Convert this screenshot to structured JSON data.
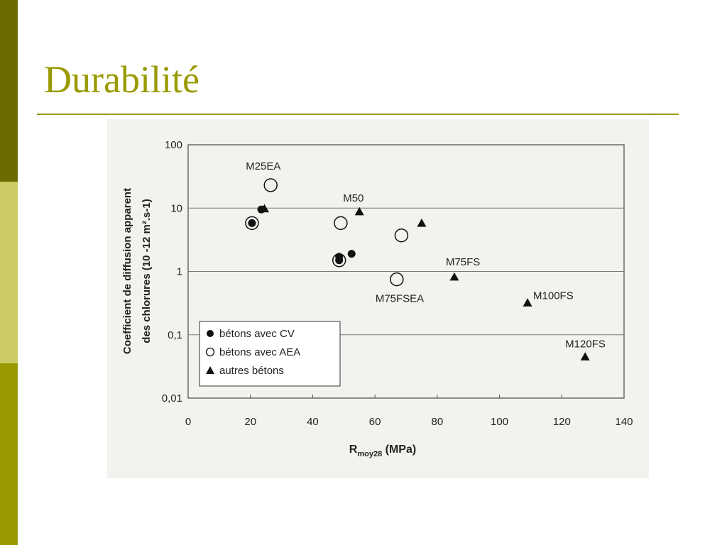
{
  "slide": {
    "title": "Durabilité"
  },
  "colors": {
    "accent": "#999900",
    "bar_dark": "#6b6b00",
    "bar_light": "#cccc66"
  },
  "chart_data": {
    "type": "scatter",
    "title": "",
    "xlabel_main": "R",
    "xlabel_sub": "moy28",
    "xlabel_unit": " (MPa)",
    "ylabel_line1": "Coefficient de diffusion apparent",
    "ylabel_line2": "des chlorures (10 -12 m².s-1)",
    "xlim": [
      0,
      140
    ],
    "ylim": [
      0.01,
      100
    ],
    "yscale": "log",
    "grid": "horizontal",
    "legend_placement": "bottom-left",
    "x_ticks": [
      "0",
      "20",
      "40",
      "60",
      "80",
      "100",
      "120",
      "140"
    ],
    "y_ticks": [
      "0,01",
      "0,1",
      "1",
      "10",
      "100"
    ],
    "series": [
      {
        "name": "bétons avec CV",
        "marker": "filled-circle",
        "points": [
          {
            "x": 20.5,
            "y": 5.8
          },
          {
            "x": 23.5,
            "y": 9.5
          },
          {
            "x": 48.5,
            "y": 1.7
          },
          {
            "x": 48.5,
            "y": 1.5
          },
          {
            "x": 52.5,
            "y": 1.9
          }
        ]
      },
      {
        "name": "bétons avec AEA",
        "marker": "open-circle",
        "points": [
          {
            "x": 20.5,
            "y": 5.8
          },
          {
            "x": 26.5,
            "y": 23
          },
          {
            "x": 49,
            "y": 5.8
          },
          {
            "x": 48.5,
            "y": 1.5
          },
          {
            "x": 68.5,
            "y": 3.7
          },
          {
            "x": 67,
            "y": 0.75
          }
        ]
      },
      {
        "name": "autres bétons",
        "marker": "filled-triangle",
        "points": [
          {
            "x": 24.5,
            "y": 9.8
          },
          {
            "x": 55,
            "y": 8.8
          },
          {
            "x": 75,
            "y": 5.8
          },
          {
            "x": 85.5,
            "y": 0.82
          },
          {
            "x": 109,
            "y": 0.32
          },
          {
            "x": 127.5,
            "y": 0.045
          }
        ]
      }
    ],
    "annotations": [
      {
        "text": "M25EA",
        "x": 26.5,
        "y": 23
      },
      {
        "text": "M50",
        "x": 55,
        "y": 8.8
      },
      {
        "text": "M75FS",
        "x": 85.5,
        "y": 0.82
      },
      {
        "text": "M75FSEA",
        "x": 67,
        "y": 0.75
      },
      {
        "text": "M100FS",
        "x": 109,
        "y": 0.32
      },
      {
        "text": "M120FS",
        "x": 127.5,
        "y": 0.045
      }
    ]
  }
}
